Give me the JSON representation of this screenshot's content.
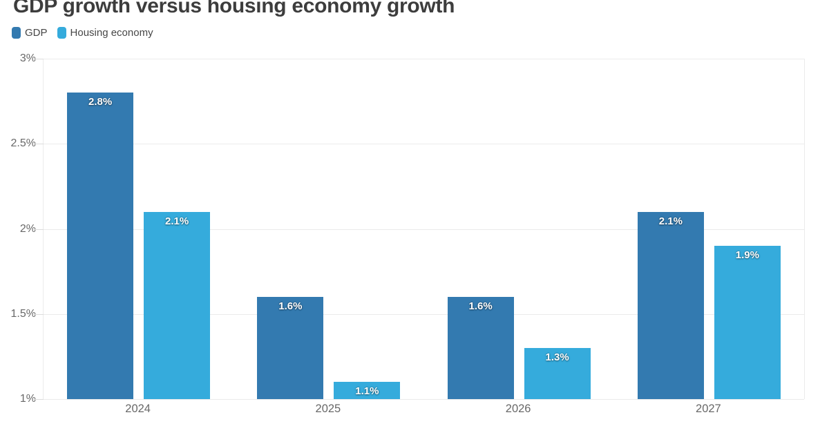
{
  "chart_data": {
    "type": "bar",
    "title": "GDP growth versus housing economy growth",
    "categories": [
      "2024",
      "2025",
      "2026",
      "2027"
    ],
    "series": [
      {
        "name": "GDP",
        "color": "#337ab0",
        "values": [
          2.8,
          1.6,
          1.6,
          2.1
        ],
        "data_labels": [
          "2.8%",
          "1.6%",
          "1.6%",
          "2.1%"
        ]
      },
      {
        "name": "Housing economy",
        "color": "#35abdc",
        "values": [
          2.1,
          1.1,
          1.3,
          1.9
        ],
        "data_labels": [
          "2.1%",
          "1.1%",
          "1.3%",
          "1.9%"
        ]
      }
    ],
    "ylim": [
      1,
      3
    ],
    "yticks": [
      {
        "value": 3,
        "label": "3%"
      },
      {
        "value": 2.5,
        "label": "2.5%"
      },
      {
        "value": 2,
        "label": "2%"
      },
      {
        "value": 1.5,
        "label": "1.5%"
      },
      {
        "value": 1,
        "label": "1%"
      }
    ],
    "xlabel": "",
    "ylabel": "",
    "grid": true,
    "legend_position": "top-left",
    "bar_label_color": "#ffffff"
  }
}
